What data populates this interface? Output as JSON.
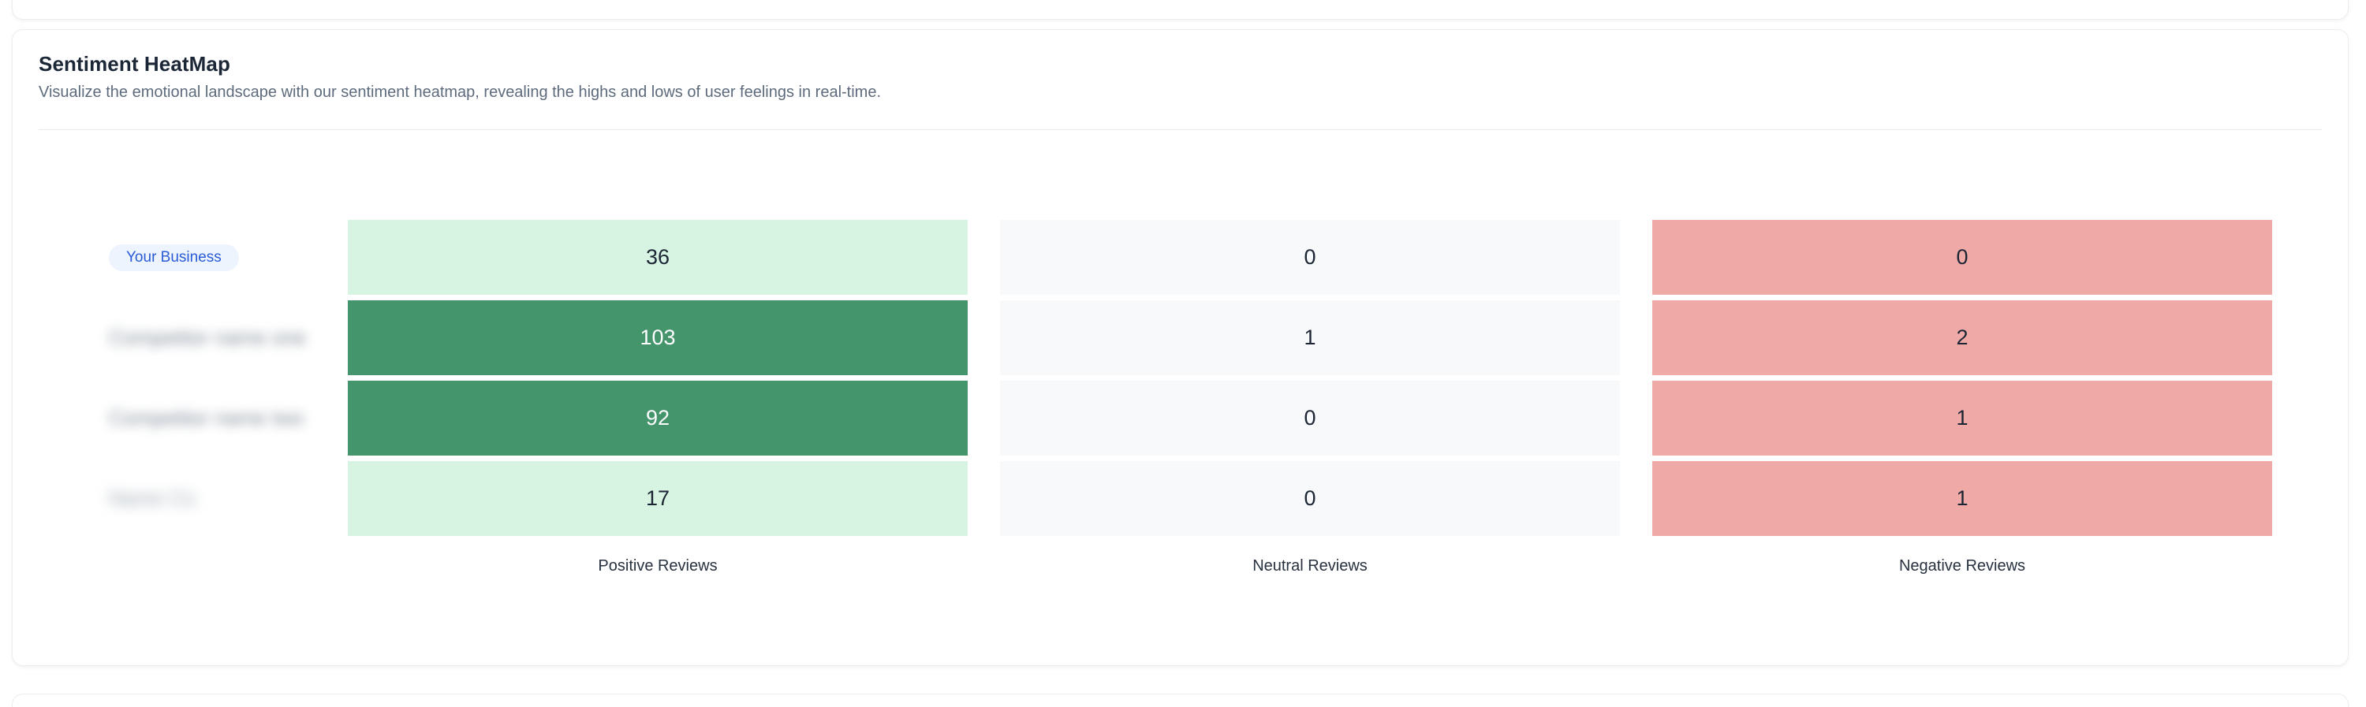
{
  "card": {
    "title": "Sentiment HeatMap",
    "description": "Visualize the emotional landscape with our sentiment heatmap, revealing the highs and lows of user feelings in real-time."
  },
  "chart_data": {
    "type": "heatmap",
    "title": "Sentiment HeatMap",
    "columns": [
      "Positive Reviews",
      "Neutral Reviews",
      "Negative Reviews"
    ],
    "rows": [
      {
        "label": "Your Business",
        "redacted": false,
        "values": [
          36,
          0,
          0
        ]
      },
      {
        "label": "Competitor name one",
        "redacted": true,
        "values": [
          103,
          1,
          2
        ]
      },
      {
        "label": "Competitor name two",
        "redacted": true,
        "values": [
          92,
          0,
          1
        ]
      },
      {
        "label": "Name Co",
        "redacted": true,
        "values": [
          17,
          0,
          1
        ]
      }
    ],
    "legend_position": "none",
    "grid": "off",
    "palette": {
      "positive_low": "#d7f3e2",
      "positive_high": "#44946c",
      "neutral": "#f7f9fa",
      "negative": "#efa9a7",
      "value_text_dark": "#1b2534",
      "value_text_light": "#ffffff",
      "badge_bg": "#edf4fe",
      "badge_text": "#2a5bd7"
    }
  }
}
